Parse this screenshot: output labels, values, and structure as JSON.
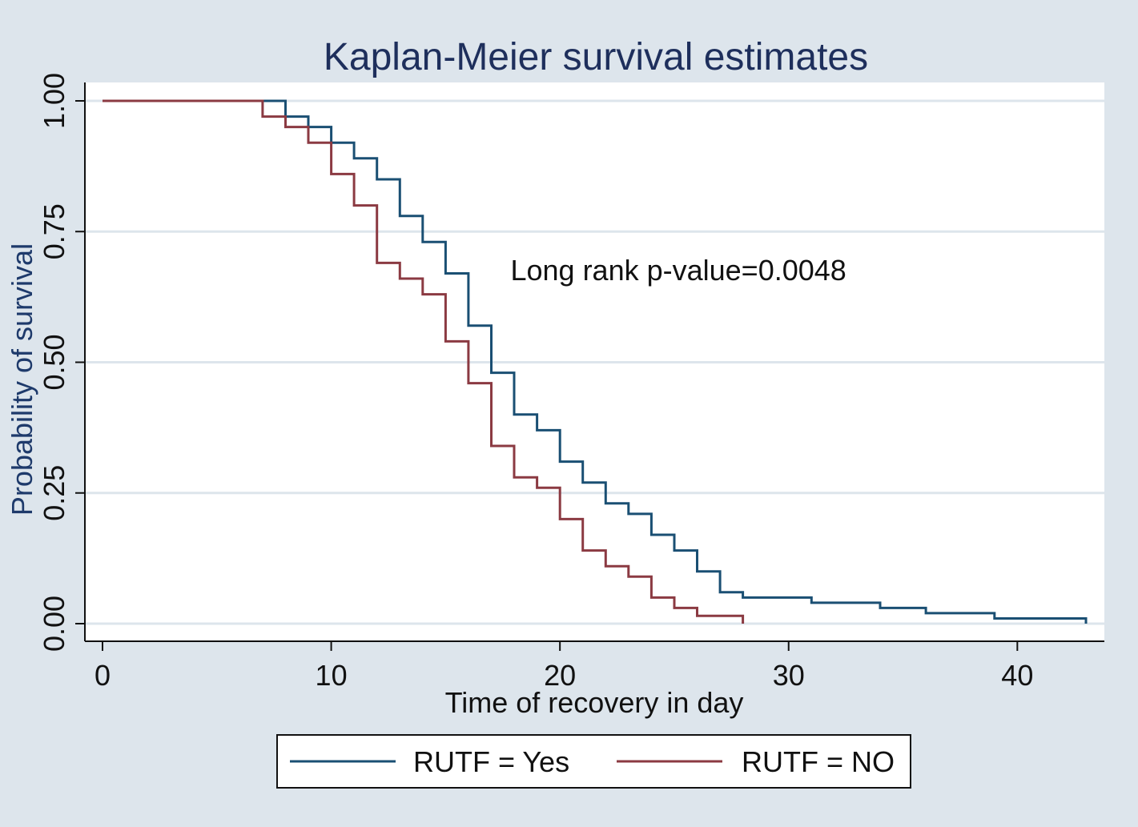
{
  "chart_data": {
    "type": "line",
    "subtype": "step",
    "title": "Kaplan-Meier survival estimates",
    "xlabel": "Time of recovery in day",
    "ylabel": "Probability of survival",
    "xlim": [
      0,
      43
    ],
    "ylim": [
      0,
      1
    ],
    "x_ticks": [
      0,
      10,
      20,
      30,
      40
    ],
    "x_tick_labels": [
      "0",
      "10",
      "20",
      "30",
      "40"
    ],
    "y_ticks": [
      0,
      0.25,
      0.5,
      0.75,
      1.0
    ],
    "y_tick_labels": [
      "0.00",
      "0.25",
      "0.50",
      "0.75",
      "1.00"
    ],
    "grid": "horizontal",
    "annotation": {
      "text": "Long rank p-value=0.0048",
      "x": 17,
      "y": 0.675
    },
    "legend_position": "bottom",
    "series": [
      {
        "name": "RUTF = Yes",
        "color": "#1a4f73",
        "x": [
          0,
          8,
          9,
          10,
          11,
          12,
          13,
          14,
          15,
          16,
          17,
          18,
          19,
          20,
          21,
          22,
          23,
          24,
          25,
          26,
          27,
          28,
          31,
          34,
          36,
          39,
          43
        ],
        "y": [
          1.0,
          0.97,
          0.95,
          0.92,
          0.89,
          0.85,
          0.78,
          0.73,
          0.67,
          0.57,
          0.48,
          0.4,
          0.37,
          0.31,
          0.27,
          0.23,
          0.21,
          0.17,
          0.14,
          0.1,
          0.06,
          0.05,
          0.04,
          0.03,
          0.02,
          0.01,
          0.0
        ]
      },
      {
        "name": "RUTF = NO",
        "color": "#8b3a42",
        "x": [
          0,
          7,
          8,
          9,
          10,
          11,
          12,
          13,
          14,
          15,
          16,
          17,
          18,
          19,
          20,
          21,
          22,
          23,
          24,
          25,
          26,
          28
        ],
        "y": [
          1.0,
          0.97,
          0.95,
          0.92,
          0.86,
          0.8,
          0.69,
          0.66,
          0.63,
          0.54,
          0.46,
          0.34,
          0.28,
          0.26,
          0.2,
          0.14,
          0.11,
          0.09,
          0.05,
          0.03,
          0.015,
          0.0
        ]
      }
    ]
  },
  "colors": {
    "outer_background": "#dde5ec",
    "plot_background": "#ffffff",
    "grid": "#dde5ec",
    "title": "#1e2f5c",
    "ylabel": "#1e3a6b",
    "axis_text": "#111111"
  }
}
